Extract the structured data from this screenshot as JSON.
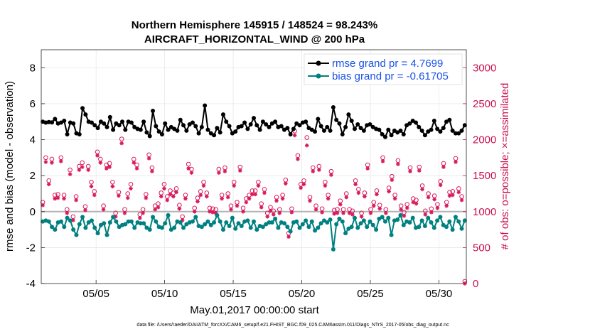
{
  "chart_data": {
    "type": "line",
    "title_line1": "Northern Hemisphere 145915 / 148524 = 98.243%",
    "title_line2": "AIRCRAFT_HORIZONTAL_WIND @ 200 hPa",
    "xlabel": "May.01,2017 00:00:00 start",
    "ylabel_left": "rmse and bias (model - observation)",
    "ylabel_right": "# of obs: o=possible; ×=assimilated",
    "footnote": "data file: /Users/raeder/DAI/ATM_forcXX/CAM6_setup/f.e21.FHIST_BGC.f09_025.CAM6assim.011/Diags_NTrS_2017-05/obs_diag_output.nc",
    "xlim": [
      1.0,
      32.0
    ],
    "ylim_left": [
      -4,
      9
    ],
    "ylim_right": [
      0,
      3250
    ],
    "x_ticks": [
      5,
      10,
      15,
      20,
      25,
      30
    ],
    "x_tick_labels": [
      "05/05",
      "05/10",
      "05/15",
      "05/20",
      "05/25",
      "05/30"
    ],
    "y_ticks_left": [
      -4,
      -2,
      0,
      2,
      4,
      6,
      8
    ],
    "y_ticks_right": [
      0,
      500,
      1000,
      1500,
      2000,
      2500,
      3000
    ],
    "legend": [
      {
        "name": "rmse grand pr = 4.7699",
        "color": "#000000"
      },
      {
        "name": "bias grand pr = -0.61705",
        "color": "#008080"
      }
    ],
    "series": [
      {
        "name": "rmse",
        "color": "#000000",
        "values": [
          5.0,
          4.95,
          4.98,
          4.96,
          5.15,
          4.9,
          4.95,
          5.05,
          4.3,
          4.95,
          4.9,
          4.35,
          4.3,
          5.75,
          5.4,
          5.0,
          4.95,
          4.8,
          4.65,
          5.0,
          4.9,
          4.7,
          5.25,
          4.55,
          4.9,
          4.8,
          5.0,
          4.55,
          5.0,
          4.95,
          4.7,
          4.6,
          4.55,
          5.0,
          4.4,
          4.2,
          5.6,
          4.75,
          4.45,
          4.3,
          4.9,
          4.55,
          4.7,
          4.6,
          4.5,
          5.1,
          4.8,
          4.5,
          4.85,
          4.95,
          4.75,
          4.35,
          4.7,
          5.9,
          4.55,
          4.35,
          4.25,
          4.65,
          4.4,
          5.4,
          5.0,
          4.75,
          4.35,
          4.45,
          4.7,
          4.75,
          4.95,
          4.6,
          4.85,
          5.2,
          4.8,
          4.55,
          5.0,
          4.85,
          4.7,
          4.9,
          5.0,
          4.7,
          4.75,
          4.55,
          4.65,
          4.3,
          4.6,
          4.9,
          4.8,
          4.95,
          5.0,
          4.65,
          4.55,
          4.45,
          5.15,
          4.75,
          4.5,
          4.7,
          4.5,
          5.8,
          5.1,
          4.9,
          4.3,
          4.7,
          5.4,
          5.05,
          4.6,
          4.85,
          4.65,
          4.5,
          4.8,
          4.85,
          4.7,
          4.6,
          4.55,
          4.3,
          4.15,
          4.55,
          4.25,
          4.5,
          4.4,
          4.5,
          4.3,
          4.8,
          4.9,
          5.05,
          4.95,
          4.7,
          4.5,
          4.25,
          4.45,
          4.55,
          5.05,
          4.6,
          4.45,
          4.65,
          5.0,
          5.1,
          4.5,
          4.35,
          4.35,
          4.5,
          4.8
        ]
      },
      {
        "name": "bias",
        "color": "#008080",
        "values": [
          -0.55,
          -0.5,
          -0.55,
          -0.85,
          -1.0,
          -0.6,
          -0.55,
          -0.85,
          -0.35,
          -0.5,
          -1.0,
          -1.3,
          -0.7,
          -0.3,
          -0.9,
          -0.6,
          -0.5,
          -0.9,
          -1.2,
          -0.75,
          -0.65,
          -1.3,
          -0.6,
          -0.3,
          -0.55,
          -0.85,
          -0.75,
          -0.7,
          -0.55,
          -0.55,
          -0.9,
          -0.6,
          -0.65,
          -0.65,
          -0.9,
          -1.0,
          -0.3,
          -0.55,
          -0.85,
          -0.9,
          -0.65,
          -0.2,
          -1.0,
          -0.9,
          -0.55,
          -0.6,
          -0.9,
          -0.7,
          -0.6,
          -0.55,
          -0.3,
          -0.8,
          -0.85,
          -0.7,
          -0.55,
          -0.75,
          -0.6,
          -0.2,
          -0.55,
          -1.0,
          -0.6,
          -0.8,
          -0.35,
          -0.95,
          -0.65,
          -0.8,
          -0.55,
          -0.5,
          -0.9,
          -0.55,
          -1.0,
          -0.8,
          -0.85,
          -0.7,
          -0.6,
          -0.6,
          -0.4,
          -0.9,
          -0.6,
          -0.65,
          -0.85,
          -1.1,
          -0.6,
          -0.55,
          -0.9,
          -0.7,
          -0.5,
          -0.85,
          -0.55,
          -1.05,
          -0.9,
          -0.65,
          -0.5,
          -0.6,
          -0.45,
          -2.1,
          -0.7,
          -0.4,
          -0.55,
          -1.2,
          -0.95,
          -0.85,
          -0.35,
          -0.9,
          -0.65,
          -0.5,
          -0.85,
          -0.55,
          -0.75,
          -1.0,
          -0.4,
          -0.3,
          -0.55,
          -0.35,
          -1.3,
          -0.5,
          -0.45,
          -0.2,
          -0.75,
          -0.55,
          -0.6,
          -0.35,
          -0.9,
          -0.85,
          -0.5,
          -0.8,
          -0.35,
          -0.6,
          -0.9,
          -0.5,
          -0.3,
          -0.75,
          -0.85,
          -0.55,
          -1.0,
          -0.3,
          -0.55,
          -0.95,
          -0.5
        ]
      }
    ],
    "obs_possible": [
      1100,
      1720,
      1400,
      1700,
      1200,
      1210,
      1720,
      1200,
      1000,
      1550,
      900,
      1180,
      1600,
      1650,
      1040,
      1600,
      1380,
      1250,
      1800,
      1700,
      1050,
      1620,
      1640,
      1380,
      950,
      1240,
      1980,
      1000,
      1220,
      1350,
      1700,
      1620,
      930,
      1000,
      1210,
      1760,
      1580,
      1050,
      1080,
      1230,
      1350,
      1180,
      1260,
      1230,
      1290,
      1060,
      900,
      1200,
      1630,
      1560,
      1020,
      1160,
      1250,
      1380,
      1230,
      1020,
      1010,
      1000,
      1560,
      1200,
      1580,
      1220,
      1050,
      1380,
      1100,
      1590,
      1020,
      1150,
      1200,
      1260,
      1260,
      1380,
      1080,
      1280,
      950,
      1030,
      980,
      1170,
      1000,
      1200,
      1410,
      670,
      1010,
      2090,
      1750,
      1350,
      1400,
      2000,
      1170,
      1580,
      1050,
      1600,
      1010,
      1380,
      1200,
      1530,
      990,
      1000,
      1120,
      1000,
      1220,
      1000,
      980,
      1400,
      1280,
      950,
      1230,
      1620,
      1000,
      1100,
      1260,
      1060,
      1720,
      1000,
      1300,
      1460,
      1200,
      1680,
      1050,
      960,
      1070,
      1580,
      1150,
      1130,
      1590,
      1330,
      980,
      1220,
      1010,
      1190,
      1070,
      1390,
      1640,
      1100,
      1240,
      1250,
      1710,
      1290,
      1180,
      0
    ],
    "obs_assimilated": [
      1090,
      1690,
      1380,
      1680,
      1180,
      1190,
      1700,
      1180,
      980,
      1520,
      880,
      1160,
      1580,
      1620,
      1020,
      1580,
      1350,
      1230,
      1780,
      1680,
      1030,
      1600,
      1620,
      1350,
      930,
      1220,
      1950,
      980,
      1190,
      1320,
      1680,
      1600,
      910,
      980,
      1190,
      1740,
      1560,
      1030,
      1060,
      1210,
      1320,
      1160,
      1240,
      1210,
      1270,
      1040,
      880,
      1180,
      1600,
      1540,
      1000,
      1140,
      1230,
      1360,
      1210,
      1000,
      990,
      980,
      1540,
      1180,
      1560,
      1200,
      1030,
      1360,
      1080,
      1570,
      1000,
      1130,
      1180,
      1240,
      1240,
      1360,
      1060,
      1260,
      930,
      1010,
      960,
      1150,
      980,
      1180,
      1390,
      650,
      990,
      2060,
      1730,
      1330,
      1380,
      1920,
      1150,
      1560,
      1030,
      1580,
      990,
      1360,
      1180,
      1510,
      970,
      980,
      1100,
      980,
      1200,
      980,
      960,
      1380,
      1260,
      930,
      1210,
      1600,
      980,
      1080,
      1240,
      1040,
      1700,
      980,
      1280,
      1440,
      1180,
      1660,
      1030,
      940,
      1050,
      1560,
      1130,
      1110,
      1570,
      1310,
      960,
      1200,
      990,
      1170,
      1050,
      1370,
      1620,
      1080,
      1220,
      1230,
      1690,
      1270,
      1160,
      0
    ]
  }
}
